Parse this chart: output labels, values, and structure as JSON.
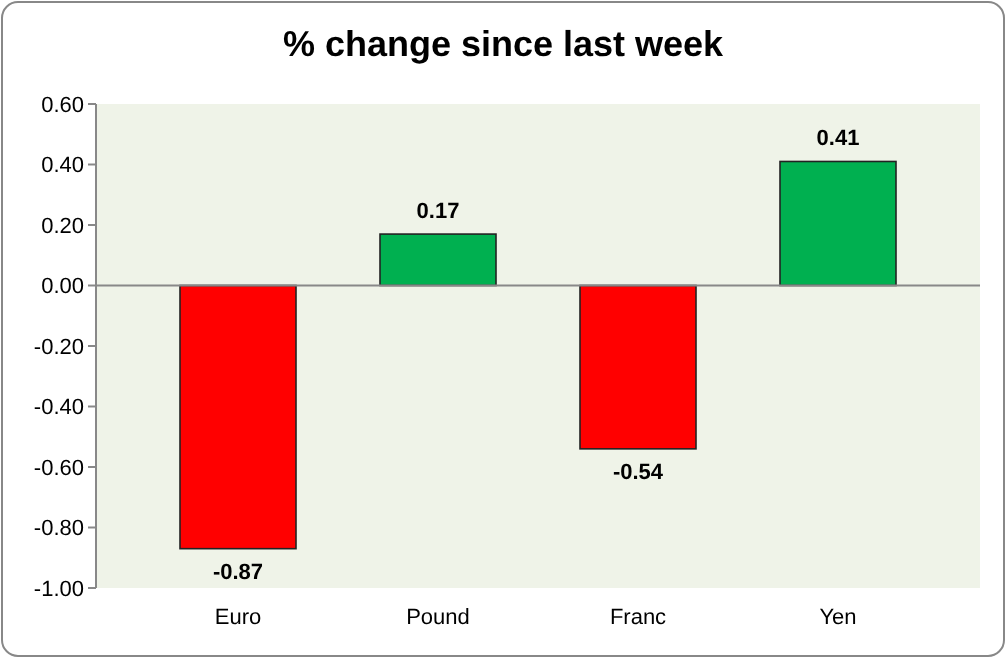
{
  "chart_data": {
    "type": "bar",
    "title": "% change since last week",
    "categories": [
      "Euro",
      "Pound",
      "Franc",
      "Yen"
    ],
    "values": [
      -0.87,
      0.17,
      -0.54,
      0.41
    ],
    "colors": [
      "#ff0000",
      "#00b050",
      "#ff0000",
      "#00b050"
    ],
    "ylim": [
      -1,
      0.6
    ],
    "yticks": [
      {
        "value": -1,
        "label": "-1.00"
      },
      {
        "value": -0.8,
        "label": "-0.80"
      },
      {
        "value": -0.6,
        "label": "-0.60"
      },
      {
        "value": -0.4,
        "label": "-0.40"
      },
      {
        "value": -0.2,
        "label": "-0.20"
      },
      {
        "value": 0,
        "label": "0.00"
      },
      {
        "value": 0.2,
        "label": "0.20"
      },
      {
        "value": 0.4,
        "label": "0.40"
      },
      {
        "value": 0.6,
        "label": "0.60"
      }
    ],
    "data_labels": true
  }
}
